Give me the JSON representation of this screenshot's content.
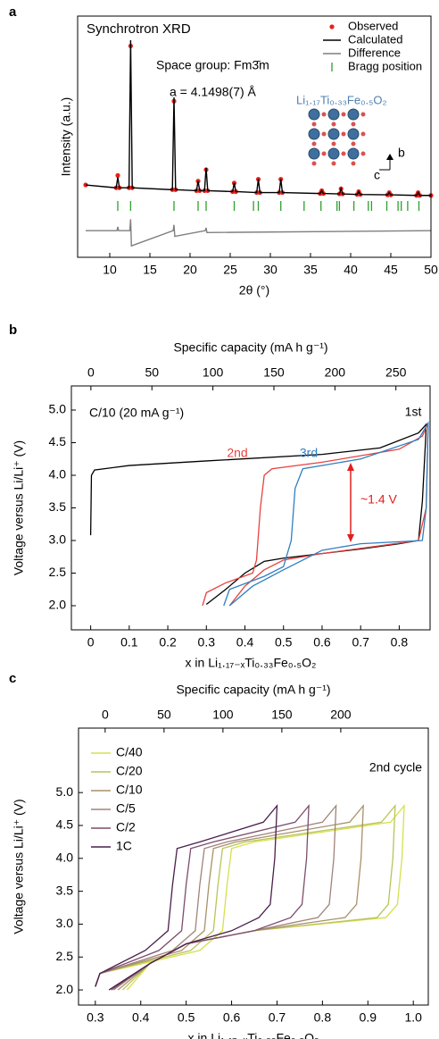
{
  "chart_data": [
    {
      "type": "line",
      "panel": "a",
      "title": "Synchrotron XRD",
      "xlabel": "2θ (°)",
      "ylabel": "Intensity (a.u.)",
      "xlim": [
        6,
        50
      ],
      "xticks": [
        10,
        15,
        20,
        25,
        30,
        35,
        40,
        45,
        50
      ],
      "ylim": [
        -14,
        112.7
      ],
      "annotations": [
        "Space group: Fm3̄m",
        "a = 4.1498(7) Å",
        "Li₁.₁₇Ti₀.₃₃Fe₀.₅O₂",
        "b",
        "c"
      ],
      "series": [
        {
          "name": "Observed",
          "color": "#e8211c",
          "style": "dots",
          "x": [
            7,
            10.8,
            11,
            11.2,
            12.4,
            12.6,
            12.8,
            17.8,
            18,
            18.2,
            20.8,
            21,
            21.2,
            21.8,
            22,
            22.2,
            25.3,
            25.5,
            25.7,
            28.3,
            28.5,
            28.7,
            31.1,
            31.3,
            31.5,
            36.2,
            36.4,
            36.6,
            38.6,
            38.8,
            39,
            40.8,
            41,
            41.2,
            44.6,
            44.8,
            45,
            48.2,
            48.4,
            48.6,
            50
          ],
          "values": [
            24,
            22.5,
            29,
            22.5,
            22.5,
            97,
            22.5,
            21.5,
            68,
            21.5,
            21,
            26,
            21,
            21,
            32,
            21,
            20.5,
            25,
            20.5,
            20,
            27,
            20,
            20,
            27,
            20,
            19.5,
            21,
            19.5,
            19.3,
            22,
            19.3,
            19,
            20.5,
            19,
            18.8,
            20,
            18.8,
            18.5,
            20,
            18.5,
            18.5
          ]
        },
        {
          "name": "Calculated",
          "color": "#000000",
          "style": "line",
          "x": [
            7,
            10.8,
            11,
            11.2,
            12.4,
            12.6,
            12.8,
            17.8,
            18,
            18.2,
            20.8,
            21,
            21.2,
            21.8,
            22,
            22.2,
            25.3,
            25.5,
            25.7,
            28.3,
            28.5,
            28.7,
            31.1,
            31.3,
            31.5,
            36.2,
            36.4,
            36.6,
            38.6,
            38.8,
            39,
            40.8,
            41,
            41.2,
            44.6,
            44.8,
            45,
            48.2,
            48.4,
            48.6,
            50
          ],
          "values": [
            24,
            22.5,
            28,
            22.5,
            22.5,
            100,
            22.5,
            21.5,
            70,
            21.5,
            21,
            26,
            21,
            21,
            33,
            21,
            20.5,
            25,
            20.5,
            20,
            27,
            20,
            20,
            27,
            20,
            19.5,
            21,
            19.5,
            19.3,
            22,
            19.3,
            19,
            20.5,
            19,
            18.8,
            20,
            18.8,
            18.5,
            20,
            18.5,
            18.5
          ]
        },
        {
          "name": "Difference",
          "color": "#7f7f7f",
          "style": "line",
          "x": [
            7,
            10.9,
            11,
            11.1,
            12.5,
            12.6,
            12.7,
            17.9,
            18,
            18.1,
            21.9,
            22,
            22.1,
            50
          ],
          "values": [
            0,
            0,
            2,
            0,
            0,
            6,
            -8,
            0,
            3,
            -3,
            0,
            1.5,
            -1,
            0
          ]
        },
        {
          "name": "Bragg position",
          "color": "#2ca02c",
          "style": "ticks",
          "x": [
            11,
            12.6,
            18,
            21,
            22,
            25.5,
            27.9,
            28.5,
            31.3,
            34.2,
            36.3,
            38.3,
            38.6,
            40.4,
            42.2,
            42.6,
            44.5,
            45.9,
            46.3,
            47.1,
            48.5
          ]
        }
      ]
    },
    {
      "type": "line",
      "panel": "b",
      "xlabel": "x in Li₁.₁₇₋ₓTi₀.₃₃Fe₀.₅O₂",
      "x2label": "Specific capacity (mA h g⁻¹)",
      "ylabel": "Voltage versus Li/Li⁺ (V)",
      "xlim": [
        -0.05,
        0.88
      ],
      "xticks": [
        0,
        0.1,
        0.2,
        0.3,
        0.4,
        0.5,
        0.6,
        0.7,
        0.8
      ],
      "x2lim": [
        -16,
        278
      ],
      "x2ticks": [
        0,
        50,
        100,
        150,
        200,
        250
      ],
      "ylim": [
        1.63,
        5.37
      ],
      "yticks": [
        {
          "value": 2,
          "label": "2.0"
        },
        2.5,
        {
          "value": 3,
          "label": "3.0"
        },
        3.5,
        {
          "value": 4,
          "label": "4.0"
        },
        4.5,
        {
          "value": 5,
          "label": "5.0"
        }
      ],
      "annotations": [
        "C/10 (20 mA g⁻¹)",
        "~1.4 V"
      ],
      "series": [
        {
          "name": "1st",
          "color": "#000000",
          "style": "line",
          "x": [
            0,
            0.002,
            0.01,
            0.1,
            0.3,
            0.6,
            0.75,
            0.85,
            0.87,
            0.868,
            0.86,
            0.85,
            0.8,
            0.7,
            0.6,
            0.5,
            0.45,
            0.4,
            0.35,
            0.3
          ],
          "values": [
            3.08,
            4.0,
            4.08,
            4.15,
            4.22,
            4.32,
            4.42,
            4.65,
            4.78,
            4.5,
            3.6,
            3.0,
            2.95,
            2.87,
            2.8,
            2.73,
            2.68,
            2.5,
            2.25,
            2.02
          ]
        },
        {
          "name": "2nd",
          "color": "#e8423f",
          "style": "line",
          "x": [
            0.29,
            0.3,
            0.35,
            0.42,
            0.43,
            0.44,
            0.45,
            0.47,
            0.6,
            0.8,
            0.86,
            0.875,
            0.87,
            0.85,
            0.75,
            0.6,
            0.5,
            0.45,
            0.4,
            0.36
          ],
          "values": [
            2.0,
            2.2,
            2.35,
            2.5,
            2.7,
            3.5,
            4.0,
            4.1,
            4.2,
            4.4,
            4.6,
            4.8,
            3.5,
            3.0,
            2.92,
            2.8,
            2.7,
            2.55,
            2.3,
            2.0
          ]
        },
        {
          "name": "3rd",
          "color": "#2f7fc1",
          "style": "line",
          "x": [
            0.345,
            0.36,
            0.45,
            0.5,
            0.52,
            0.53,
            0.55,
            0.7,
            0.85,
            0.875,
            0.87,
            0.86,
            0.7,
            0.6,
            0.55,
            0.5,
            0.42,
            0.36
          ],
          "values": [
            2.0,
            2.25,
            2.45,
            2.6,
            3.0,
            3.8,
            4.1,
            4.25,
            4.55,
            4.8,
            3.5,
            3.0,
            2.95,
            2.85,
            2.7,
            2.55,
            2.3,
            2.0
          ]
        }
      ]
    },
    {
      "type": "line",
      "panel": "c",
      "xlabel": "x in Li₁.₁₇₋ₓTi₀.₃₃Fe₀.₅O₂",
      "x2label": "Specific capacity (mA h g⁻¹)",
      "ylabel": "Voltage versus Li/Li⁺ (V)",
      "xlim": [
        0.263,
        1.033
      ],
      "xticks": [
        0.3,
        0.4,
        0.5,
        0.6,
        0.7,
        0.8,
        0.9,
        {
          "value": 1,
          "label": "1.0"
        }
      ],
      "x2lim": [
        -22.6,
        274.3
      ],
      "x2ticks": [
        0,
        50,
        100,
        150,
        200
      ],
      "ylim": [
        1.77,
        5.98
      ],
      "yticks": [
        {
          "value": 2,
          "label": "2.0"
        },
        2.5,
        {
          "value": 3,
          "label": "3.0"
        },
        3.5,
        {
          "value": 4,
          "label": "4.0"
        },
        4.5,
        {
          "value": 5,
          "label": "5.0"
        }
      ],
      "annotations": [
        "2nd cycle"
      ],
      "series": [
        {
          "name": "C/40",
          "color": "#d6e04c",
          "style": "line",
          "x": [
            0.3,
            0.31,
            0.53,
            0.58,
            0.59,
            0.6,
            0.65,
            0.95,
            0.98,
            0.975,
            0.965,
            0.94,
            0.65,
            0.5,
            0.42,
            0.37
          ],
          "values": [
            2.05,
            2.25,
            2.6,
            2.9,
            3.6,
            4.15,
            4.25,
            4.55,
            4.8,
            4.0,
            3.3,
            3.1,
            2.9,
            2.7,
            2.4,
            2.0
          ]
        },
        {
          "name": "C/20",
          "color": "#b9c45a",
          "style": "line",
          "x": [
            0.3,
            0.31,
            0.51,
            0.56,
            0.57,
            0.58,
            0.63,
            0.93,
            0.96,
            0.955,
            0.945,
            0.92,
            0.65,
            0.5,
            0.42,
            0.36
          ],
          "values": [
            2.05,
            2.25,
            2.6,
            2.9,
            3.6,
            4.15,
            4.25,
            4.55,
            4.8,
            4.0,
            3.3,
            3.1,
            2.9,
            2.7,
            2.4,
            2.0
          ]
        },
        {
          "name": "C/10",
          "color": "#a99166",
          "style": "line",
          "x": [
            0.3,
            0.31,
            0.49,
            0.54,
            0.55,
            0.56,
            0.61,
            0.86,
            0.89,
            0.885,
            0.875,
            0.85,
            0.65,
            0.5,
            0.42,
            0.35
          ],
          "values": [
            2.05,
            2.25,
            2.6,
            2.9,
            3.6,
            4.15,
            4.25,
            4.55,
            4.8,
            4.0,
            3.3,
            3.1,
            2.9,
            2.7,
            2.4,
            2.0
          ]
        },
        {
          "name": "C/5",
          "color": "#a0837a",
          "style": "line",
          "x": [
            0.3,
            0.31,
            0.47,
            0.52,
            0.53,
            0.54,
            0.59,
            0.8,
            0.83,
            0.825,
            0.815,
            0.79,
            0.65,
            0.5,
            0.42,
            0.34
          ],
          "values": [
            2.05,
            2.25,
            2.6,
            2.9,
            3.6,
            4.15,
            4.25,
            4.55,
            4.8,
            4.0,
            3.3,
            3.1,
            2.9,
            2.7,
            2.4,
            2.0
          ]
        },
        {
          "name": "C/2",
          "color": "#7c4d6c",
          "style": "line",
          "x": [
            0.3,
            0.31,
            0.44,
            0.49,
            0.5,
            0.51,
            0.56,
            0.74,
            0.77,
            0.765,
            0.755,
            0.73,
            0.65,
            0.5,
            0.42,
            0.335
          ],
          "values": [
            2.05,
            2.25,
            2.6,
            2.9,
            3.6,
            4.15,
            4.25,
            4.55,
            4.8,
            4.0,
            3.3,
            3.1,
            2.9,
            2.7,
            2.4,
            2.0
          ]
        },
        {
          "name": "1C",
          "color": "#4a1f4c",
          "style": "line",
          "x": [
            0.3,
            0.31,
            0.41,
            0.46,
            0.47,
            0.48,
            0.53,
            0.67,
            0.7,
            0.695,
            0.685,
            0.66,
            0.6,
            0.5,
            0.42,
            0.33
          ],
          "values": [
            2.05,
            2.25,
            2.6,
            2.9,
            3.6,
            4.15,
            4.25,
            4.55,
            4.8,
            4.0,
            3.3,
            3.1,
            2.9,
            2.7,
            2.4,
            2.0
          ]
        }
      ]
    }
  ]
}
